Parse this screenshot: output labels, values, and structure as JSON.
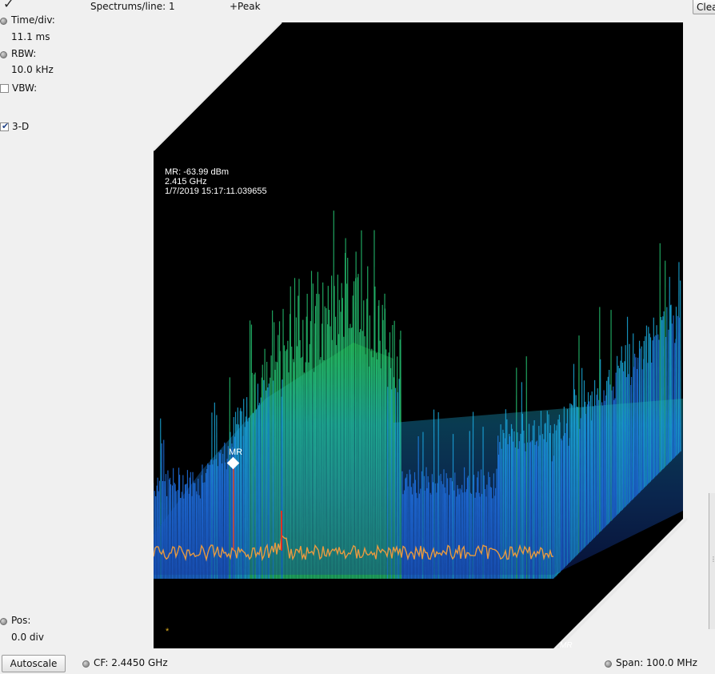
{
  "header": {
    "checkmark": "✓",
    "spectrums_label": "Spectrums/line: 1",
    "trace_mode": "+Peak",
    "clear_button": "Clea"
  },
  "sidebar": {
    "time_div_label": "Time/div:",
    "time_div_value": "11.1 ms",
    "rbw_label": "RBW:",
    "rbw_value": "10.0 kHz",
    "vbw_label": "VBW:",
    "vbw_checked": false,
    "threed_label": "3-D",
    "threed_checked": true,
    "pos_label": "Pos:",
    "pos_value": "0.0 div"
  },
  "footer": {
    "autoscale_button": "Autoscale",
    "cf_label": "CF: 2.4450 GHz",
    "span_label": "Span: 100.0 MHz"
  },
  "marker": {
    "name": "MR",
    "readout_power": "MR: -63.99 dBm",
    "readout_freq": "2.415 GHz",
    "readout_time": "1/7/2019 15:17:11.039655",
    "axis_marker_label": "MR",
    "star_glyph": "*"
  },
  "colors": {
    "background": "#f0f0f0",
    "plot_background": "#000000",
    "trace_front": "#e89a40",
    "waterfall_low": "#1e5fd0",
    "waterfall_mid": "#1aa0e0",
    "waterfall_high": "#20c060",
    "marker_red": "#e03020",
    "marker_white": "#ffffff"
  }
}
